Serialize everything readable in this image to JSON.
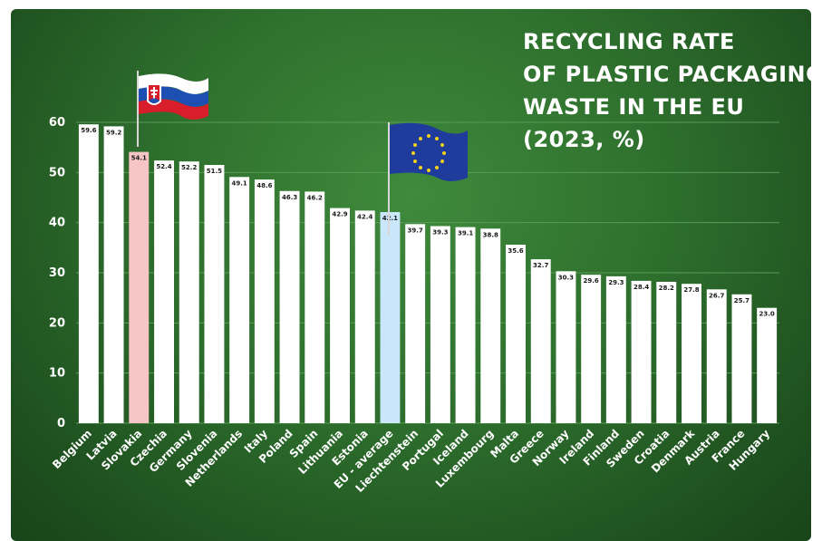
{
  "colors": {
    "background": "#2e6f2d",
    "bar_default": "#ffffff",
    "bar_slovakia": "#f7c5c5",
    "bar_eu": "#c9e6fb",
    "grid": "#5a9a57",
    "text": "#ffffff"
  },
  "icons": [
    "slovakia-flag-icon",
    "eu-flag-icon"
  ],
  "chart_data": {
    "type": "bar",
    "title_lines": [
      "RECYCLING RATE",
      "OF PLASTIC PACKAGING",
      "WASTE IN THE EU",
      "(2023, %)"
    ],
    "xlabel": "",
    "ylabel": "",
    "ylim": [
      0,
      60
    ],
    "yticks": [
      0,
      10,
      20,
      30,
      40,
      50,
      60
    ],
    "grid": true,
    "legend": "none",
    "categories": [
      "Belgium",
      "Latvia",
      "Slovakia",
      "Czechia",
      "Germany",
      "Slovenia",
      "Netherlands",
      "Italy",
      "Poland",
      "Spain",
      "Lithuania",
      "Estonia",
      "EU - average",
      "Liechtenstein",
      "Portugal",
      "Iceland",
      "Luxembourg",
      "Malta",
      "Greece",
      "Norway",
      "Ireland",
      "Finland",
      "Sweden",
      "Croatia",
      "Denmark",
      "Austria",
      "France",
      "Hungary"
    ],
    "values": [
      59.6,
      59.2,
      54.1,
      52.4,
      52.2,
      51.5,
      49.1,
      48.6,
      46.3,
      46.2,
      42.9,
      42.4,
      42.1,
      39.7,
      39.3,
      39.1,
      38.8,
      35.6,
      32.7,
      30.3,
      29.6,
      29.3,
      28.4,
      28.2,
      27.8,
      26.7,
      25.7,
      23.0
    ],
    "value_labels": [
      "59.6",
      "59.2",
      "54.1",
      "52.4",
      "52.2",
      "51.5",
      "49.1",
      "48.6",
      "46.3",
      "46.2",
      "42.9",
      "42.4",
      "42.1",
      "39.7",
      "39.3",
      "39.1",
      "38.8",
      "35.6",
      "32.7",
      "30.3",
      "29.6",
      "29.3",
      "28.4",
      "28.2",
      "27.8",
      "26.7",
      "25.7",
      "23.0"
    ],
    "highlight": {
      "Slovakia": "#f7c5c5",
      "EU - average": "#c9e6fb"
    }
  }
}
